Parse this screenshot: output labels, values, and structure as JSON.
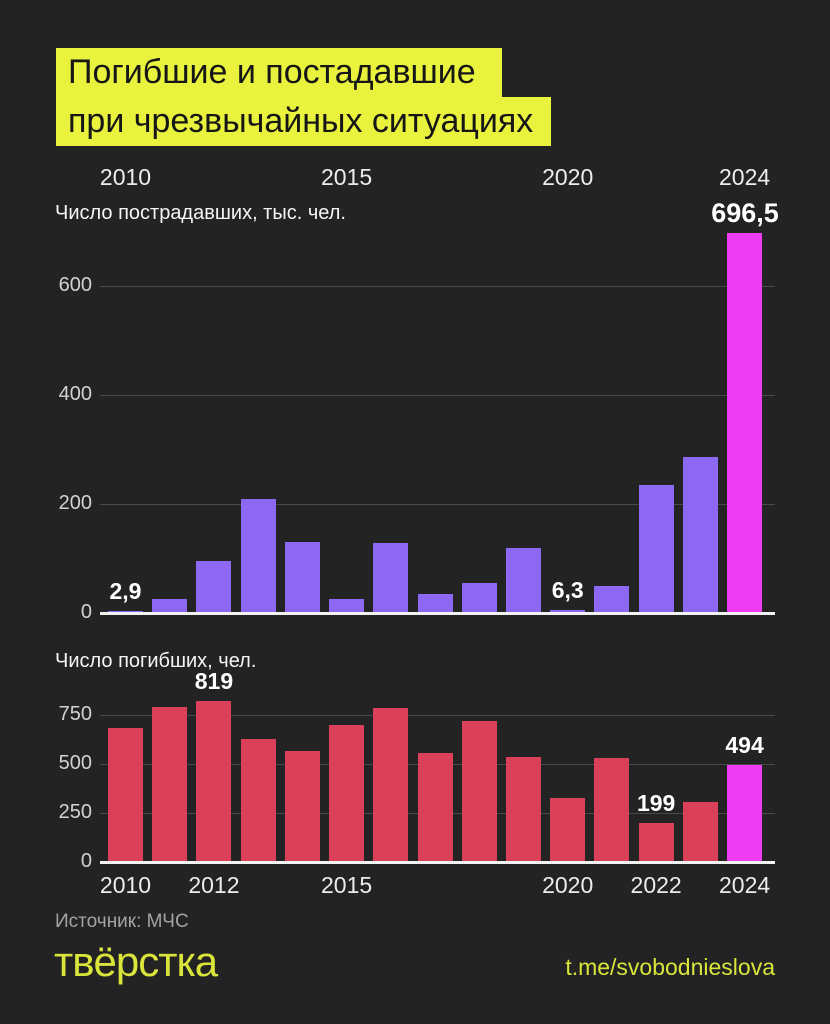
{
  "title": {
    "line1": "Погибшие и постадавшие",
    "line2": "при чрезвычайных ситуациях"
  },
  "colors": {
    "background": "#232323",
    "accent_yellow": "#e9f23c",
    "title_text": "#161616",
    "bar_purple": "#8d68f2",
    "bar_red": "#da4059",
    "bar_highlight_magenta": "#ee3cf5",
    "gridline": "#4a4a4a",
    "baseline": "#f2f2f2",
    "text_primary": "#ffffff",
    "text_muted": "#a3a3a3"
  },
  "chart_data": [
    {
      "type": "bar",
      "title": "Число пострадавших, тыс. чел.",
      "categories": [
        "2010",
        "2011",
        "2012",
        "2013",
        "2014",
        "2015",
        "2016",
        "2017",
        "2018",
        "2019",
        "2020",
        "2021",
        "2022",
        "2023",
        "2024"
      ],
      "values": [
        2.9,
        25,
        95,
        210,
        130,
        25,
        128,
        35,
        55,
        120,
        6.3,
        50,
        235,
        287,
        696.5
      ],
      "ylim": [
        0,
        700
      ],
      "yticks": [
        0,
        200,
        400,
        600
      ],
      "grid": "on",
      "x_ticks": [
        {
          "index": 0,
          "label": "2010"
        },
        {
          "index": 5,
          "label": "2015"
        },
        {
          "index": 10,
          "label": "2020"
        },
        {
          "index": 14,
          "label": "2024"
        }
      ],
      "value_labels": {
        "0": "2,9",
        "10": "6,3"
      },
      "hero_label": "696,5",
      "bar_color": "#8d68f2",
      "highlight_index": 14,
      "highlight_color": "#ee3cf5"
    },
    {
      "type": "bar",
      "title": "Число погибших, чел.",
      "categories": [
        "2010",
        "2011",
        "2012",
        "2013",
        "2014",
        "2015",
        "2016",
        "2017",
        "2018",
        "2019",
        "2020",
        "2021",
        "2022",
        "2023",
        "2024"
      ],
      "values": [
        683,
        790,
        819,
        630,
        567,
        697,
        787,
        556,
        717,
        534,
        326,
        529,
        199,
        308,
        494
      ],
      "ylim": [
        0,
        880
      ],
      "yticks": [
        0,
        250,
        500,
        750
      ],
      "grid": "on",
      "x_ticks": [
        {
          "index": 0,
          "label": "2010"
        },
        {
          "index": 2,
          "label": "2012"
        },
        {
          "index": 5,
          "label": "2015"
        },
        {
          "index": 10,
          "label": "2020"
        },
        {
          "index": 12,
          "label": "2022"
        },
        {
          "index": 14,
          "label": "2024"
        }
      ],
      "value_labels": {
        "2": "819",
        "12": "199",
        "14": "494"
      },
      "bar_color": "#da4059",
      "highlight_index": 14,
      "highlight_color": "#ee3cf5"
    }
  ],
  "footer": {
    "source": "Источник: МЧС",
    "logo": "твёрстка",
    "link": "t.me/svobodnieslova"
  }
}
